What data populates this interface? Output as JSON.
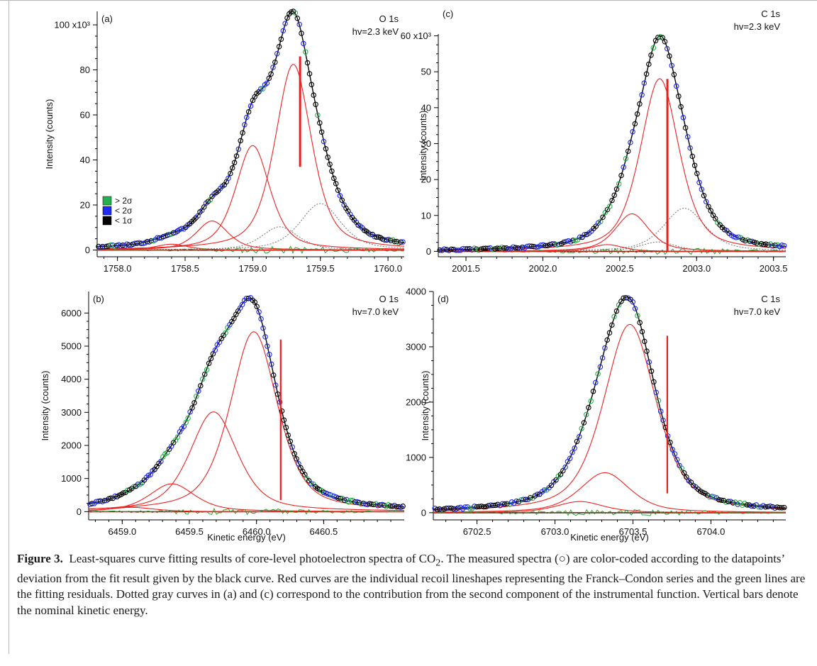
{
  "chart_data": [
    {
      "type": "line",
      "panel_label": "(a)",
      "core_level": "O 1s",
      "photon_energy": "hv=2.3 keV",
      "ylabel": "Intensity (counts)",
      "xlabel": "",
      "xlim": [
        1757.85,
        1760.12
      ],
      "ylim": [
        -3,
        106
      ],
      "y_multiplier": "x10³",
      "xticks": [
        1758.0,
        1758.5,
        1759.0,
        1759.5,
        1760.0
      ],
      "yticks": [
        0,
        20,
        40,
        60,
        80,
        100
      ],
      "ytick_labels": [
        "0",
        "20",
        "40",
        "60",
        "80",
        "100 x10³"
      ],
      "nominal_energy": 1759.35,
      "nominal_bar": [
        37,
        86
      ],
      "peaks": [
        {
          "center": 1759.3,
          "amplitude": 80,
          "width": 0.16
        },
        {
          "center": 1759.0,
          "amplitude": 45,
          "width": 0.15
        },
        {
          "center": 1758.7,
          "amplitude": 12.5,
          "width": 0.14
        },
        {
          "center": 1758.4,
          "amplitude": 2.5,
          "width": 0.14
        }
      ],
      "instrument_components": [
        {
          "center": 1759.5,
          "amplitude": 20,
          "width": 0.18
        },
        {
          "center": 1759.2,
          "amplitude": 10,
          "width": 0.16
        }
      ],
      "fit_peak": 106,
      "fit_peak_position": 1759.29,
      "legend": [
        {
          "label": "> 2σ",
          "color": "#22b14c"
        },
        {
          "label": "< 2σ",
          "color": "#1f2bf2"
        },
        {
          "label": "< 1σ",
          "color": "#000000"
        }
      ]
    },
    {
      "type": "line",
      "panel_label": "(c)",
      "core_level": "C 1s",
      "photon_energy": "hv=2.3 keV",
      "ylabel": "Intensity (counts)",
      "xlabel": "",
      "xlim": [
        2001.32,
        2003.58
      ],
      "ylim": [
        -1.5,
        60.5
      ],
      "y_multiplier": "x10³",
      "xticks": [
        2001.5,
        2002.0,
        2002.5,
        2003.0,
        2003.5
      ],
      "yticks": [
        0,
        10,
        20,
        30,
        40,
        50,
        60
      ],
      "ytick_labels": [
        "0",
        "10",
        "20",
        "30",
        "40",
        "50",
        "60 x10³"
      ],
      "nominal_energy": 2002.81,
      "nominal_bar": [
        0,
        48
      ],
      "peaks": [
        {
          "center": 2002.76,
          "amplitude": 46,
          "width": 0.15
        },
        {
          "center": 2002.58,
          "amplitude": 10,
          "width": 0.13
        },
        {
          "center": 2002.42,
          "amplitude": 1.8,
          "width": 0.12
        }
      ],
      "instrument_components": [
        {
          "center": 2002.92,
          "amplitude": 11.5,
          "width": 0.16
        },
        {
          "center": 2002.75,
          "amplitude": 2.5,
          "width": 0.14
        }
      ],
      "fit_peak": 60,
      "fit_peak_position": 2002.76
    },
    {
      "type": "line",
      "panel_label": "(b)",
      "core_level": "O 1s",
      "photon_energy": "hv=7.0 keV",
      "ylabel": "Intensity (counts)",
      "xlabel": "Kinetic energy (eV)",
      "xlim": [
        6458.75,
        6461.1
      ],
      "ylim": [
        -250,
        6650
      ],
      "y_multiplier": "",
      "xticks": [
        6459.0,
        6459.5,
        6460.0,
        6460.5
      ],
      "yticks": [
        0,
        1000,
        2000,
        3000,
        4000,
        5000,
        6000
      ],
      "ytick_labels": [
        "0",
        "1000",
        "2000",
        "3000",
        "4000",
        "5000",
        "6000"
      ],
      "nominal_energy": 6460.18,
      "nominal_bar": [
        350,
        5200
      ],
      "peaks": [
        {
          "center": 6459.98,
          "amplitude": 5500,
          "width": 0.21
        },
        {
          "center": 6459.68,
          "amplitude": 3050,
          "width": 0.21
        },
        {
          "center": 6459.37,
          "amplitude": 850,
          "width": 0.2
        },
        {
          "center": 6459.07,
          "amplitude": 130,
          "width": 0.2
        }
      ],
      "fit_peak": 6450,
      "fit_peak_position": 6459.91
    },
    {
      "type": "line",
      "panel_label": "(d)",
      "core_level": "C 1s",
      "photon_energy": "hv=7.0 keV",
      "ylabel": "Intensity (counts)",
      "xlabel": "Kinetic energy (eV)",
      "xlim": [
        6702.22,
        6704.48
      ],
      "ylim": [
        -130,
        4000
      ],
      "y_multiplier": "",
      "xticks": [
        6702.5,
        6703.0,
        6703.5,
        6704.0
      ],
      "yticks": [
        0,
        1000,
        2000,
        3000,
        4000
      ],
      "ytick_labels": [
        "0",
        "1000",
        "2000",
        "3000",
        "4000"
      ],
      "nominal_energy": 6703.72,
      "nominal_bar": [
        350,
        3200
      ],
      "peaks": [
        {
          "center": 6703.48,
          "amplitude": 3200,
          "width": 0.2
        },
        {
          "center": 6703.32,
          "amplitude": 680,
          "width": 0.19
        },
        {
          "center": 6703.16,
          "amplitude": 190,
          "width": 0.18
        }
      ],
      "fit_peak": 3900,
      "fit_peak_position": 6703.43
    }
  ],
  "caption": {
    "label": "Figure 3.",
    "text_pre": "Least-squares curve fitting results of core-level photoelectron spectra of CO",
    "subscript": "2",
    "text_post": ". The measured spectra (○) are color-coded according to the datapoints’ deviation from the fit result given by the black curve. Red curves are the individual recoil lineshapes representing the Franck–Condon series and the green lines are the fitting residuals. Dotted gray curves in (a) and (c) correspond to the contribution from the second component of the instrumental function. Vertical bars denote the nominal kinetic energy."
  },
  "colors": {
    "fit": "#000000",
    "components": "#ee2222",
    "residual": "#2aa02a",
    "instrument": "#7f7f7f",
    "nominal_bar": "#e8201c",
    "sigma_high": "#22b14c",
    "sigma_mid": "#1f2bf2",
    "sigma_low": "#000000"
  }
}
